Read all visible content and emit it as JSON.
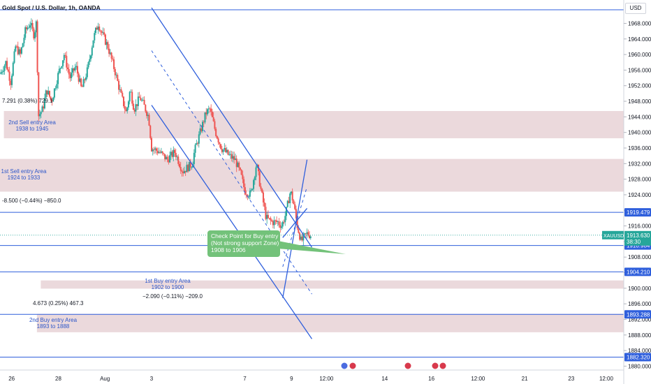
{
  "header": {
    "symbol_title": "Gold Spot / U.S. Dollar, 1h, OANDA",
    "currency": "USD"
  },
  "chart_data": {
    "type": "candlestick",
    "y_ticks": [
      1968,
      1964,
      1960,
      1956,
      1952,
      1948,
      1944,
      1940,
      1936,
      1932,
      1928,
      1924,
      1920,
      1916,
      1912,
      1908,
      1904,
      1900,
      1896,
      1892,
      1888,
      1884,
      1880
    ],
    "y_tick_labels": [
      "1968.000",
      "1964.000",
      "1960.000",
      "1956.000",
      "1952.000",
      "1948.000",
      "1944.000",
      "1940.000",
      "1936.000",
      "1932.000",
      "1928.000",
      "1924.000",
      "1920.000",
      "1916.000",
      "1912.000",
      "1908.000",
      "1904.000",
      "1900.000",
      "1896.000",
      "1892.000",
      "1888.000",
      "1884.000",
      "1880.000"
    ],
    "ylim": [
      1879,
      1974
    ],
    "x_ticks": [
      "26",
      "28",
      "Aug",
      "3",
      "7",
      "9",
      "12:00",
      "14",
      "16",
      "12:00",
      "21",
      "23",
      "12:00"
    ],
    "x_tick_hours": [
      -144,
      -96,
      -48,
      0,
      96,
      144,
      180,
      240,
      288,
      336,
      384,
      432,
      468
    ],
    "xlim_hours": [
      -156,
      486
    ],
    "horizontal_levels": [
      {
        "price": 1971.5
      },
      {
        "price": 1919.479,
        "label": "1919.479"
      },
      {
        "price": 1910.984,
        "label": "1910.984"
      },
      {
        "price": 1904.21,
        "label": "1904.210"
      },
      {
        "price": 1893.288,
        "label": "1893.288"
      },
      {
        "price": 1882.32,
        "label": "1882.320"
      }
    ],
    "zones": [
      {
        "name": "2nd Sell entry Area",
        "range_text": "1938 to 1945",
        "low": 1938.5,
        "high": 1945.5,
        "start_hour": -152
      },
      {
        "name": "1st Sell entry Area",
        "range_text": "1924 to 1933",
        "low": 1924.8,
        "high": 1933.2,
        "start_hour": -156
      },
      {
        "name": "1st Buy entry Area",
        "range_text": "1902 to 1900",
        "low": 1899.9,
        "high": 1902.0,
        "start_hour": -114
      },
      {
        "name": "2nd Buy entry Area",
        "range_text": "1893 to 1888",
        "low": 1888.7,
        "high": 1893.4,
        "start_hour": -118
      }
    ],
    "current_price": {
      "symbol": "XAUUSD",
      "value": "1913.630",
      "countdown": "38:30",
      "price": 1913.63
    },
    "measurements": [
      {
        "text": "7.291 (0.38%) 729.1"
      },
      {
        "text": "-8.500 (−0.44%) −850.0"
      },
      {
        "text": "4.673 (0.25%) 467.3"
      },
      {
        "text": "−2.090 (−0.11%) −209.0"
      }
    ],
    "annotation": {
      "lines": [
        "Check Point for Buy entry",
        "(Not strong support Zone)",
        "1908 to 1906"
      ]
    },
    "channel_lines": [
      {
        "style": "solid",
        "from": [
          0,
          1972
        ],
        "to": [
          165,
          1910.5
        ]
      },
      {
        "style": "dashed",
        "from": [
          0,
          1961
        ],
        "to": [
          165,
          1898.5
        ]
      },
      {
        "style": "solid",
        "from": [
          0,
          1947
        ],
        "to": [
          165,
          1887
        ]
      }
    ],
    "ascending_channel": [
      {
        "style": "solid",
        "from": [
          135,
          1897.5
        ],
        "to": [
          160,
          1933
        ]
      },
      {
        "style": "dashed",
        "from": [
          135,
          1905.5
        ],
        "to": [
          160,
          1926
        ]
      },
      {
        "style": "solid",
        "from": [
          135,
          1913
        ],
        "to": [
          160,
          1920.5
        ]
      }
    ],
    "candles": []
  }
}
